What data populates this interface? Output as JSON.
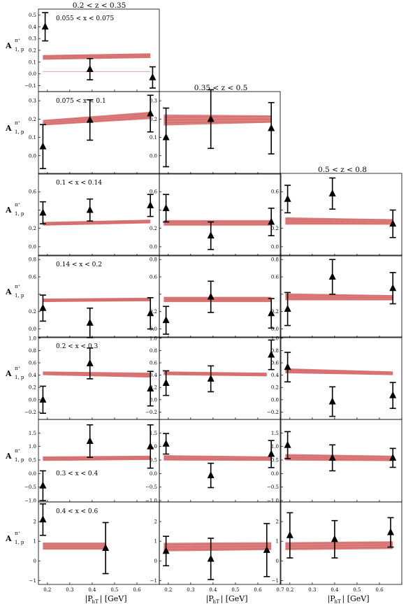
{
  "figure": {
    "col_titles": [
      "0.2 < z < 0.35",
      "0.35 < z < 0.5",
      "0.5 < z < 0.8"
    ],
    "row_ylabel": "A",
    "row_ylabel_sup": "π⁺",
    "row_ylabel_sub": "1, p",
    "x_axis_label": "|P",
    "x_axis_label_sub": "hT",
    "x_axis_label_unit": "| [GeV]",
    "x_tick_labels": [
      "0.2",
      "0.3",
      "0.4",
      "0.5",
      "0.6"
    ],
    "x_tick_labels_col2": [
      "0.2",
      "0.3",
      "0.4",
      "0.5",
      "0.6",
      "0.7"
    ],
    "band_color": "#d05454",
    "marker_color": "#000000"
  },
  "chart_data": {
    "type": "scatter",
    "xlim": [
      0.16,
      0.7
    ],
    "rows": [
      {
        "label": "0.055 < x < 0.075",
        "ylim": [
          -0.15,
          0.55
        ],
        "yticks": [
          -0.1,
          0.0,
          0.1,
          0.2,
          0.3,
          0.4,
          0.5
        ],
        "ytick_labels": [
          "−0.1",
          "0.0",
          "0.1",
          "0.2",
          "0.3",
          "0.4",
          "0.5"
        ],
        "panels": [
          {
            "col": 0,
            "band": {
              "x": [
                0.18,
                0.66
              ],
              "center": [
                0.14,
                0.155
              ],
              "half_width": [
                0.02,
                0.02
              ],
              "pale_low": 0.02
            },
            "points": [
              {
                "x": 0.19,
                "y": 0.4,
                "err": 0.12
              },
              {
                "x": 0.39,
                "y": 0.04,
                "err": 0.09
              },
              {
                "x": 0.67,
                "y": -0.03,
                "err": 0.09
              }
            ]
          }
        ]
      },
      {
        "label": "0.075 < x < 0.1",
        "ylim": [
          -0.1,
          0.35
        ],
        "yticks": [
          0.0,
          0.1,
          0.2,
          0.3
        ],
        "ytick_labels": [
          "0.0",
          "0.1",
          "0.2",
          "0.3"
        ],
        "panels": [
          {
            "col": 0,
            "band": {
              "x": [
                0.18,
                0.66
              ],
              "center": [
                0.18,
                0.22
              ],
              "half_width": [
                0.015,
                0.02
              ]
            },
            "points": [
              {
                "x": 0.18,
                "y": 0.05,
                "err": 0.12
              },
              {
                "x": 0.39,
                "y": 0.195,
                "err": 0.11
              },
              {
                "x": 0.66,
                "y": 0.23,
                "err": 0.1
              }
            ]
          },
          {
            "col": 1,
            "band": {
              "x": [
                0.18,
                0.66
              ],
              "center": [
                0.195,
                0.2
              ],
              "half_width": [
                0.03,
                0.02
              ]
            },
            "points": [
              {
                "x": 0.19,
                "y": 0.1,
                "err": 0.16
              },
              {
                "x": 0.39,
                "y": 0.2,
                "err": 0.16
              },
              {
                "x": 0.66,
                "y": 0.15,
                "err": 0.14
              }
            ]
          }
        ]
      },
      {
        "label": "0.1 < x < 0.14",
        "ylim": [
          -0.1,
          0.8
        ],
        "yticks": [
          0.0,
          0.2,
          0.4,
          0.6
        ],
        "ytick_labels": [
          "0.0",
          "0.2",
          "",
          "0.6"
        ],
        "panels": [
          {
            "col": 0,
            "band": {
              "x": [
                0.18,
                0.66
              ],
              "center": [
                0.25,
                0.275
              ],
              "half_width": [
                0.02,
                0.02
              ]
            },
            "points": [
              {
                "x": 0.18,
                "y": 0.37,
                "err": 0.12
              },
              {
                "x": 0.39,
                "y": 0.4,
                "err": 0.12
              },
              {
                "x": 0.66,
                "y": 0.45,
                "err": 0.12
              }
            ]
          },
          {
            "col": 1,
            "band": {
              "x": [
                0.18,
                0.66
              ],
              "center": [
                0.26,
                0.26
              ],
              "half_width": [
                0.03,
                0.03
              ]
            },
            "points": [
              {
                "x": 0.19,
                "y": 0.42,
                "err": 0.15
              },
              {
                "x": 0.39,
                "y": 0.12,
                "err": 0.15
              },
              {
                "x": 0.66,
                "y": 0.27,
                "err": 0.15
              }
            ]
          },
          {
            "col": 2,
            "band": {
              "x": [
                0.18,
                0.66
              ],
              "center": [
                0.28,
                0.27
              ],
              "half_width": [
                0.04,
                0.03
              ]
            },
            "points": [
              {
                "x": 0.19,
                "y": 0.52,
                "err": 0.15
              },
              {
                "x": 0.39,
                "y": 0.58,
                "err": 0.17
              },
              {
                "x": 0.66,
                "y": 0.25,
                "err": 0.15
              }
            ]
          }
        ]
      },
      {
        "label": "0.14 < x < 0.2",
        "ylim": [
          -0.1,
          0.85
        ],
        "yticks": [
          0.0,
          0.2,
          0.4,
          0.6,
          0.8
        ],
        "ytick_labels": [
          "0.0",
          "0.2",
          "",
          "0.6",
          "0.8"
        ],
        "panels": [
          {
            "col": 0,
            "band": {
              "x": [
                0.18,
                0.66
              ],
              "center": [
                0.33,
                0.34
              ],
              "half_width": [
                0.02,
                0.02
              ]
            },
            "points": [
              {
                "x": 0.18,
                "y": 0.24,
                "err": 0.15
              },
              {
                "x": 0.39,
                "y": 0.07,
                "err": 0.17
              },
              {
                "x": 0.66,
                "y": 0.18,
                "err": 0.18
              }
            ]
          },
          {
            "col": 1,
            "band": {
              "x": [
                0.18,
                0.66
              ],
              "center": [
                0.34,
                0.34
              ],
              "half_width": [
                0.03,
                0.03
              ]
            },
            "points": [
              {
                "x": 0.19,
                "y": 0.1,
                "err": 0.16
              },
              {
                "x": 0.39,
                "y": 0.37,
                "err": 0.18
              },
              {
                "x": 0.66,
                "y": 0.18,
                "err": 0.17
              }
            ]
          },
          {
            "col": 2,
            "band": {
              "x": [
                0.18,
                0.66
              ],
              "center": [
                0.37,
                0.36
              ],
              "half_width": [
                0.04,
                0.03
              ]
            },
            "points": [
              {
                "x": 0.19,
                "y": 0.23,
                "err": 0.19
              },
              {
                "x": 0.39,
                "y": 0.6,
                "err": 0.2
              },
              {
                "x": 0.66,
                "y": 0.47,
                "err": 0.18
              }
            ]
          }
        ]
      },
      {
        "label": "0.2 < x < 0.3",
        "ylim": [
          -0.32,
          1.02
        ],
        "yticks": [
          -0.2,
          0.0,
          0.2,
          0.4,
          0.6,
          0.8,
          1.0
        ],
        "ytick_labels": [
          "−0.2",
          "0.0",
          "0.2",
          "0.4",
          "0.6",
          "0.8",
          "1.0"
        ],
        "panels": [
          {
            "col": 0,
            "band": {
              "x": [
                0.18,
                0.66
              ],
              "center": [
                0.43,
                0.4
              ],
              "half_width": [
                0.03,
                0.04
              ]
            },
            "points": [
              {
                "x": 0.18,
                "y": 0.0,
                "err": 0.22
              },
              {
                "x": 0.39,
                "y": 0.59,
                "err": 0.25
              },
              {
                "x": 0.66,
                "y": 0.18,
                "err": 0.28
              }
            ]
          },
          {
            "col": 1,
            "band": {
              "x": [
                0.18,
                0.64
              ],
              "center": [
                0.43,
                0.41
              ],
              "half_width": [
                0.03,
                0.03
              ]
            },
            "points": [
              {
                "x": 0.19,
                "y": 0.27,
                "err": 0.2
              },
              {
                "x": 0.39,
                "y": 0.34,
                "err": 0.21
              },
              {
                "x": 0.66,
                "y": 0.73,
                "err": 0.24
              }
            ]
          },
          {
            "col": 2,
            "band": {
              "x": [
                0.18,
                0.66
              ],
              "center": [
                0.47,
                0.43
              ],
              "half_width": [
                0.04,
                0.03
              ]
            },
            "points": [
              {
                "x": 0.19,
                "y": 0.53,
                "err": 0.24
              },
              {
                "x": 0.39,
                "y": -0.03,
                "err": 0.24
              },
              {
                "x": 0.66,
                "y": 0.07,
                "err": 0.21
              }
            ]
          }
        ]
      },
      {
        "label": "0.3 < x < 0.4",
        "ylim": [
          -1.05,
          2.0
        ],
        "yticks": [
          -1.0,
          -0.5,
          0.0,
          0.5,
          1.0,
          1.5
        ],
        "ytick_labels": [
          "−1.0",
          "−0.5",
          "0.0",
          "0.5",
          "1.0",
          "1.5"
        ],
        "panels": [
          {
            "col": 0,
            "band": {
              "x": [
                0.18,
                0.66
              ],
              "center": [
                0.55,
                0.58
              ],
              "half_width": [
                0.08,
                0.08
              ]
            },
            "points": [
              {
                "x": 0.18,
                "y": -0.45,
                "err": 0.55
              },
              {
                "x": 0.39,
                "y": 1.2,
                "err": 0.6
              },
              {
                "x": 0.66,
                "y": 1.0,
                "err": 0.8
              }
            ]
          },
          {
            "col": 1,
            "band": {
              "x": [
                0.18,
                0.66
              ],
              "center": [
                0.58,
                0.55
              ],
              "half_width": [
                0.1,
                0.08
              ]
            },
            "points": [
              {
                "x": 0.19,
                "y": 1.1,
                "err": 0.38
              },
              {
                "x": 0.39,
                "y": -0.07,
                "err": 0.45
              },
              {
                "x": 0.66,
                "y": 0.72,
                "err": 0.5
              }
            ]
          },
          {
            "col": 2,
            "band": {
              "x": [
                0.18,
                0.66
              ],
              "center": [
                0.6,
                0.56
              ],
              "half_width": [
                0.12,
                0.1
              ]
            },
            "points": [
              {
                "x": 0.19,
                "y": 1.05,
                "err": 0.5
              },
              {
                "x": 0.39,
                "y": 0.58,
                "err": 0.48
              },
              {
                "x": 0.66,
                "y": 0.58,
                "err": 0.35
              }
            ]
          }
        ]
      },
      {
        "label": "0.4 < x < 0.6",
        "ylim": [
          -1.2,
          3.0
        ],
        "yticks": [
          -1,
          0,
          1,
          2
        ],
        "ytick_labels": [
          "−1",
          "0",
          "1",
          "2"
        ],
        "panels": [
          {
            "col": 0,
            "band": {
              "x": [
                0.18,
                0.46
              ],
              "center": [
                0.75,
                0.75
              ],
              "half_width": [
                0.18,
                0.18
              ]
            },
            "points": [
              {
                "x": 0.18,
                "y": 2.1,
                "err": 0.8
              },
              {
                "x": 0.46,
                "y": 0.65,
                "err": 1.3
              }
            ]
          },
          {
            "col": 1,
            "band": {
              "x": [
                0.18,
                0.66
              ],
              "center": [
                0.7,
                0.75
              ],
              "half_width": [
                0.22,
                0.2
              ]
            },
            "points": [
              {
                "x": 0.19,
                "y": 0.5,
                "err": 0.75
              },
              {
                "x": 0.39,
                "y": 0.1,
                "err": 1.05
              },
              {
                "x": 0.64,
                "y": 0.55,
                "err": 1.35
              }
            ]
          },
          {
            "col": 2,
            "band": {
              "x": [
                0.18,
                0.66
              ],
              "center": [
                0.75,
                0.8
              ],
              "half_width": [
                0.2,
                0.2
              ]
            },
            "points": [
              {
                "x": 0.2,
                "y": 1.3,
                "err": 1.15
              },
              {
                "x": 0.4,
                "y": 1.1,
                "err": 0.95
              },
              {
                "x": 0.65,
                "y": 1.45,
                "err": 0.75
              }
            ]
          }
        ]
      }
    ]
  }
}
